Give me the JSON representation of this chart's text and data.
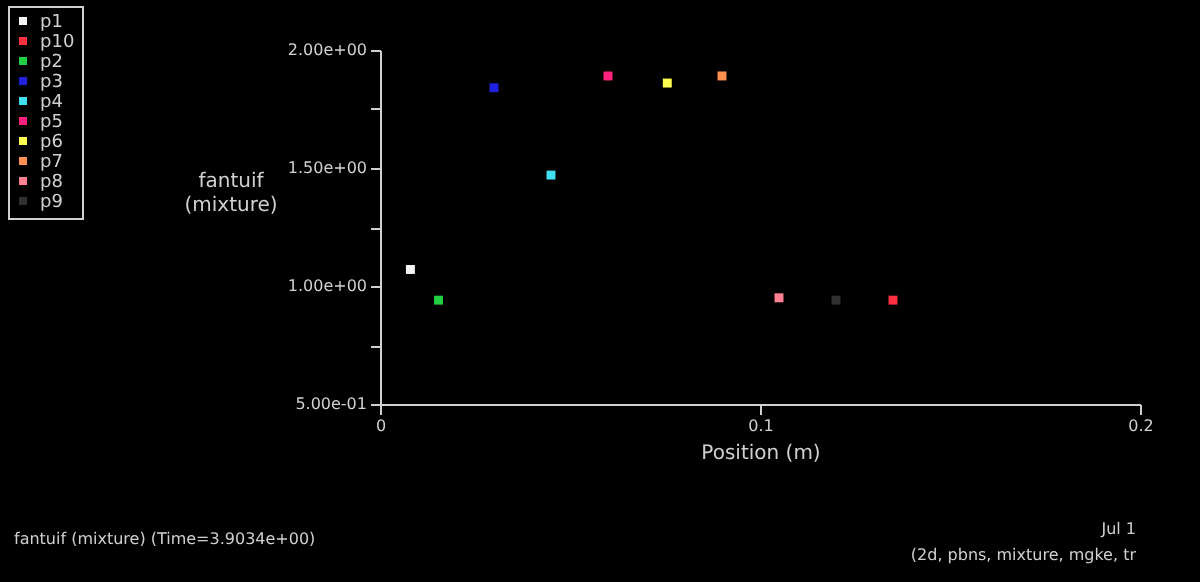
{
  "chart_data": {
    "type": "scatter",
    "xlabel": "Position (m)",
    "ylabel": "fantuif (mixture)",
    "marker": "square",
    "legend": "top left",
    "grid": false,
    "xlim": [
      0,
      0.2
    ],
    "xticks": [
      0,
      0.1,
      0.2
    ],
    "ylim": [
      0.5,
      2.0
    ],
    "yticks": [
      {
        "value": 0.5,
        "label": "5.00e-01"
      },
      {
        "value": 0.75,
        "label": null
      },
      {
        "value": 1.0,
        "label": "1.00e+00"
      },
      {
        "value": 1.25,
        "label": null
      },
      {
        "value": 1.5,
        "label": "1.50e+00"
      },
      {
        "value": 1.75,
        "label": null
      },
      {
        "value": 2.0,
        "label": "2.00e+00"
      }
    ],
    "series": [
      {
        "name": "p1",
        "color": "#f4f4f4",
        "x": [
          0.008
        ],
        "values": [
          1.07
        ]
      },
      {
        "name": "p10",
        "color": "#ff3040",
        "x": [
          0.135
        ],
        "values": [
          0.94
        ]
      },
      {
        "name": "p2",
        "color": "#20d040",
        "x": [
          0.0154
        ],
        "values": [
          0.94
        ]
      },
      {
        "name": "p3",
        "color": "#2020e0",
        "x": [
          0.03
        ],
        "values": [
          1.84
        ]
      },
      {
        "name": "p4",
        "color": "#40e0f0",
        "x": [
          0.045
        ],
        "values": [
          1.47
        ]
      },
      {
        "name": "p5",
        "color": "#ff2080",
        "x": [
          0.06
        ],
        "values": [
          1.89
        ]
      },
      {
        "name": "p6",
        "color": "#ffff50",
        "x": [
          0.0756
        ],
        "values": [
          1.86
        ]
      },
      {
        "name": "p7",
        "color": "#ff9050",
        "x": [
          0.09
        ],
        "values": [
          1.89
        ]
      },
      {
        "name": "p8",
        "color": "#ff8090",
        "x": [
          0.105
        ],
        "values": [
          0.95
        ]
      },
      {
        "name": "p9",
        "color": "#303030",
        "x": [
          0.12
        ],
        "values": [
          0.94
        ]
      }
    ],
    "annotations": [
      "fantuif (mixture)   (Time=3.9034e+00)",
      "Jul 1",
      "(2d, pbns, mixture, mgke, tr"
    ]
  }
}
